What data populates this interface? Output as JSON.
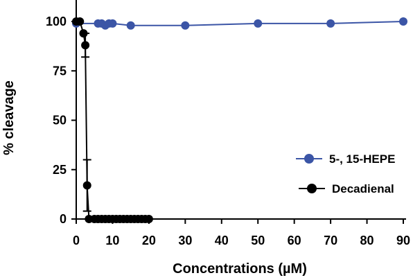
{
  "chart_data": {
    "type": "line",
    "title": "",
    "xlabel": "Concentrations (µM)",
    "ylabel": "% cleavage",
    "xlim": [
      0,
      90
    ],
    "ylim": [
      0,
      100
    ],
    "xticks": [
      "0",
      "10",
      "20",
      "30",
      "40",
      "50",
      "60",
      "70",
      "80",
      "90"
    ],
    "yticks": [
      "0",
      "25",
      "50",
      "75",
      "100"
    ],
    "grid": false,
    "legend_position": "right",
    "series": [
      {
        "name": "5-, 15-HEPE",
        "color": "#3b55a6",
        "x": [
          0,
          6,
          7,
          8,
          9,
          10,
          15,
          30,
          50,
          70,
          90
        ],
        "y": [
          99,
          99,
          99,
          98,
          99,
          99,
          98,
          98,
          99,
          99,
          100
        ]
      },
      {
        "name": "Decadienal",
        "color": "#000000",
        "x": [
          0,
          1,
          2,
          2.5,
          3,
          3.5,
          5,
          6,
          7,
          8,
          9,
          10,
          11,
          12,
          13,
          14,
          15,
          16,
          17,
          18,
          19,
          20
        ],
        "y": [
          100,
          100,
          94,
          88,
          17,
          0,
          0,
          0,
          0,
          0,
          0,
          0,
          0,
          0,
          0,
          0,
          0,
          0,
          0,
          0,
          0,
          0
        ],
        "err": [
          0,
          0,
          0,
          6,
          13,
          0,
          0,
          0,
          0,
          0,
          0,
          0,
          0,
          0,
          0,
          0,
          0,
          0,
          0,
          0,
          0,
          0
        ]
      }
    ]
  }
}
